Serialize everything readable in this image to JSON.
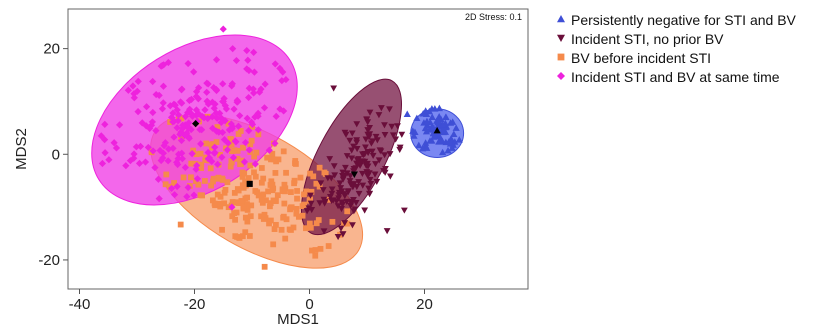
{
  "chart_data": {
    "type": "scatter",
    "xlabel": "MDS1",
    "ylabel": "MDS2",
    "xlim": [
      -42,
      38
    ],
    "ylim": [
      -25.5,
      27.5
    ],
    "xticks": [
      -40,
      -20,
      0,
      20
    ],
    "yticks": [
      20,
      0,
      -20
    ],
    "xtick_labels": [
      "-40",
      "-20",
      "0",
      "20"
    ],
    "ytick_labels": [
      "20",
      "0",
      "-20"
    ],
    "annotation": "2D Stress: 0.1",
    "legend_position": "right",
    "series": [
      {
        "name": "Persistently negative for STI and BV",
        "color": "#3f4fd6",
        "ellipse_color": "#5566ee",
        "marker": "triangle-up",
        "centroid": [
          22.2,
          4.5
        ],
        "ellipse": {
          "cx": 22.2,
          "cy": 4.0,
          "rx": 4.6,
          "ry": 4.6,
          "angle": 0
        },
        "spread": {
          "sx": 2.0,
          "sy": 1.8
        },
        "count": 80,
        "outliers": [
          [
            17.0,
            7.6
          ],
          [
            24.5,
            2.0
          ],
          [
            20.4,
            1.2
          ]
        ]
      },
      {
        "name": "Incident STI, no prior BV",
        "color": "#6a0e3a",
        "ellipse_color": "#7a1f4a",
        "marker": "triangle-down",
        "centroid": [
          7.8,
          -3.8
        ],
        "ellipse": {
          "cx": 7.3,
          "cy": -0.5,
          "rx": 15.0,
          "ry": 6.3,
          "angle": 62
        },
        "spread": {
          "sx": 2.4,
          "sy": 6.0
        },
        "count": 150,
        "outliers": [
          [
            4.2,
            12.5
          ],
          [
            12.5,
            8.8
          ],
          [
            16.5,
            -10.6
          ],
          [
            13.5,
            -14.5
          ]
        ]
      },
      {
        "name": "BV before incident STI",
        "color": "#f58a4b",
        "ellipse_color": "#f7a070",
        "marker": "square",
        "centroid": [
          -10.4,
          -5.6
        ],
        "ellipse": {
          "cx": -9.2,
          "cy": -7.0,
          "rx": 20.5,
          "ry": 10.8,
          "angle": -30
        },
        "spread": {
          "sx": 5.5,
          "sy": 5.8
        },
        "count": 230,
        "outliers": [
          [
            -7.8,
            -21.3
          ],
          [
            1.0,
            -19.2
          ],
          [
            -22.4,
            -13.3
          ]
        ]
      },
      {
        "name": "Incident STI and BV at same time",
        "color": "#ee22dd",
        "ellipse_color": "#f03ce6",
        "marker": "diamond",
        "centroid": [
          -19.8,
          5.8
        ],
        "ellipse": {
          "cx": -20.0,
          "cy": 6.5,
          "rx": 19.6,
          "ry": 13.5,
          "angle": 32
        },
        "spread": {
          "sx": 5.5,
          "sy": 5.2
        },
        "count": 220,
        "outliers": [
          [
            -15.0,
            23.7
          ],
          [
            -4.5,
            8.2
          ],
          [
            -13.5,
            -10.0
          ]
        ]
      }
    ]
  }
}
